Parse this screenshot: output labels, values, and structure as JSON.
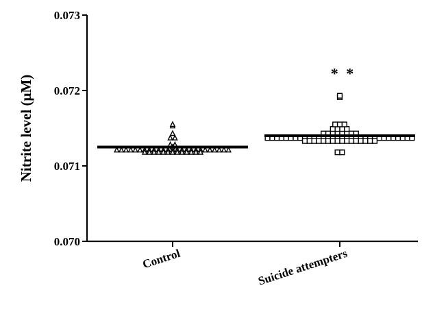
{
  "chart_data": {
    "type": "scatter",
    "title": "",
    "xlabel": "",
    "ylabel": "Nitrite level (μM)",
    "ylim": [
      0.07,
      0.073
    ],
    "yticks": [
      "0.070",
      "0.071",
      "0.072",
      "0.073"
    ],
    "categories": [
      "Control",
      "Suicide attempters"
    ],
    "annotations": [
      {
        "category": "Suicide attempters",
        "text": "* *"
      }
    ],
    "series": [
      {
        "category": "Control",
        "marker": "triangle",
        "mean": 0.07125,
        "values": [
          0.07121,
          0.07121,
          0.07121,
          0.07121,
          0.07121,
          0.07121,
          0.07121,
          0.07121,
          0.07121,
          0.07121,
          0.07121,
          0.07121,
          0.07121,
          0.07121,
          0.07121,
          0.07121,
          0.07121,
          0.07121,
          0.07121,
          0.07121,
          0.07121,
          0.07121,
          0.07121,
          0.07121,
          0.07121,
          0.07118,
          0.07118,
          0.07118,
          0.07118,
          0.07118,
          0.07118,
          0.07118,
          0.07118,
          0.07118,
          0.07118,
          0.07118,
          0.07118,
          0.07118,
          0.07125,
          0.07128,
          0.07128,
          0.07137,
          0.07137,
          0.07143,
          0.07153,
          0.07155
        ]
      },
      {
        "category": "Suicide attempters",
        "marker": "square",
        "mean": 0.0714,
        "values": [
          0.07137,
          0.07137,
          0.07137,
          0.07137,
          0.07137,
          0.07137,
          0.07137,
          0.07137,
          0.07137,
          0.07137,
          0.07137,
          0.07137,
          0.07137,
          0.07137,
          0.07137,
          0.07137,
          0.07137,
          0.07137,
          0.07137,
          0.07137,
          0.07137,
          0.07137,
          0.07137,
          0.07137,
          0.07137,
          0.07137,
          0.07137,
          0.07137,
          0.07137,
          0.07137,
          0.07137,
          0.07137,
          0.07133,
          0.07133,
          0.07133,
          0.07133,
          0.07133,
          0.07133,
          0.07133,
          0.07133,
          0.07133,
          0.07133,
          0.07133,
          0.07133,
          0.07133,
          0.07133,
          0.07133,
          0.07133,
          0.07143,
          0.07143,
          0.07143,
          0.07143,
          0.07143,
          0.07143,
          0.07143,
          0.07143,
          0.07149,
          0.07149,
          0.07149,
          0.07149,
          0.07155,
          0.07155,
          0.07155,
          0.07118,
          0.07118,
          0.07191,
          0.07193
        ]
      }
    ]
  }
}
